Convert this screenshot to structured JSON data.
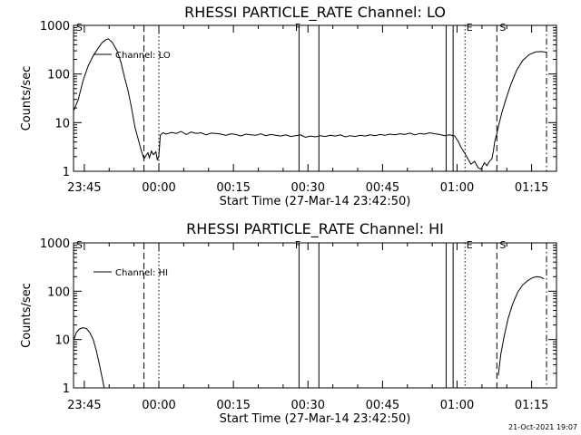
{
  "footer": {
    "timestamp": "21-Oct-2021 19:07"
  },
  "chart_data": [
    {
      "type": "line",
      "title": "RHESSI PARTICLE_RATE Channel: LO",
      "xlabel": "Start Time (27-Mar-14 23:42:50)",
      "ylabel": "Counts/sec",
      "y_scale": "log",
      "ylim": [
        1,
        1000
      ],
      "xlim_minutes": [
        -17.17,
        80.0
      ],
      "x_ticks": [
        {
          "t": -15,
          "label": "23:45"
        },
        {
          "t": 0,
          "label": "00:00"
        },
        {
          "t": 15,
          "label": "00:15"
        },
        {
          "t": 30,
          "label": "00:30"
        },
        {
          "t": 45,
          "label": "00:45"
        },
        {
          "t": 60,
          "label": "01:00"
        },
        {
          "t": 75,
          "label": "01:15"
        }
      ],
      "y_ticks": [
        {
          "v": 1,
          "label": "1"
        },
        {
          "v": 10,
          "label": "10"
        },
        {
          "v": 100,
          "label": "100"
        },
        {
          "v": 1000,
          "label": "1000"
        }
      ],
      "legend": {
        "label": "Channel: LO",
        "placement": "top-left"
      },
      "markers": [
        {
          "t": -17.0,
          "label": "S",
          "style": "dashed"
        },
        {
          "t": 27.0,
          "label": "F",
          "style": "solid"
        },
        {
          "t": 61.5,
          "label": "E",
          "style": "dotted"
        },
        {
          "t": 68.2,
          "label": "S",
          "style": "dashed"
        }
      ],
      "vlines": [
        {
          "t": -3.0,
          "style": "dashed"
        },
        {
          "t": 0.0,
          "style": "dotted"
        },
        {
          "t": 28.2,
          "style": "solid"
        },
        {
          "t": 32.2,
          "style": "solid"
        },
        {
          "t": 57.8,
          "style": "solid"
        },
        {
          "t": 59.2,
          "style": "solid"
        },
        {
          "t": 61.6,
          "style": "dotted"
        },
        {
          "t": 68.0,
          "style": "dashed"
        },
        {
          "t": 78.0,
          "style": "dashdot"
        }
      ],
      "series": [
        {
          "x": [
            -17.1,
            -16.2,
            -15.3,
            -14.3,
            -13.3,
            -12.3,
            -11.5,
            -10.8,
            -10.2,
            -9.4,
            -8.4,
            -7.6,
            -6.9,
            -6.2,
            -5.5,
            -4.8,
            -4.0,
            -3.5,
            -3.0,
            -2.6,
            -2.2,
            -1.9,
            -1.5,
            -1.1,
            -0.6,
            -0.3,
            0.0,
            0.3,
            0.8,
            1.5,
            2.5,
            3.5,
            4.5,
            5.5,
            6.5,
            7.5,
            8.5,
            9.5,
            10.5,
            11.5,
            12.5,
            13.5,
            14.5,
            15.5,
            16.5,
            17.5,
            18.5,
            19.5,
            20.5,
            21.5,
            22.5,
            23.5,
            24.5,
            25.5,
            26.5,
            27.5,
            28.5,
            29.5,
            30.5,
            31.5,
            32.5,
            33.5,
            34.5,
            35.5,
            36.5,
            37.5,
            38.5,
            39.5,
            40.5,
            41.5,
            42.5,
            43.5,
            44.5,
            45.5,
            46.5,
            47.5,
            48.5,
            49.5,
            50.5,
            51.5,
            52.5,
            53.5,
            54.5,
            55.5,
            56.5,
            57.5,
            58.5,
            59.5,
            60.2,
            60.8,
            61.5,
            62.2,
            62.8,
            63.5,
            64.2,
            64.8,
            65.5,
            66.0,
            66.5,
            67.0,
            67.3,
            67.6,
            68.0,
            68.4,
            69.0,
            69.8,
            70.8,
            72.0,
            73.2,
            74.5,
            75.8,
            77.0,
            78.0
          ],
          "y": [
            18,
            30,
            70,
            140,
            230,
            330,
            430,
            500,
            530,
            450,
            300,
            170,
            85,
            45,
            20,
            8,
            4,
            2.6,
            1.8,
            2.1,
            2.4,
            1.9,
            2.6,
            2.2,
            2.5,
            1.7,
            2.1,
            5.5,
            6.2,
            5.8,
            6.3,
            6.0,
            6.6,
            5.7,
            6.4,
            6.0,
            6.2,
            5.6,
            6.1,
            6.0,
            5.8,
            5.5,
            5.9,
            5.7,
            5.3,
            5.8,
            5.6,
            5.5,
            5.9,
            5.4,
            5.7,
            5.5,
            5.3,
            5.6,
            5.2,
            5.4,
            5.6,
            5.0,
            5.3,
            5.1,
            5.4,
            5.2,
            5.5,
            5.3,
            5.6,
            5.1,
            5.4,
            5.2,
            5.5,
            5.3,
            5.6,
            5.4,
            5.7,
            5.5,
            5.8,
            5.6,
            5.9,
            5.7,
            6.1,
            5.6,
            6.0,
            5.8,
            6.2,
            5.9,
            5.7,
            5.4,
            5.6,
            5.3,
            4.2,
            3.1,
            2.4,
            1.8,
            1.4,
            1.6,
            1.2,
            1.1,
            1.5,
            1.3,
            1.6,
            1.8,
            2.6,
            4.2,
            6.0,
            9.0,
            16,
            30,
            60,
            120,
            190,
            250,
            285,
            290,
            280
          ]
        }
      ]
    },
    {
      "type": "line",
      "title": "RHESSI PARTICLE_RATE Channel: HI",
      "xlabel": "Start Time (27-Mar-14 23:42:50)",
      "ylabel": "Counts/sec",
      "y_scale": "log",
      "ylim": [
        1,
        1000
      ],
      "xlim_minutes": [
        -17.17,
        80.0
      ],
      "x_ticks": [
        {
          "t": -15,
          "label": "23:45"
        },
        {
          "t": 0,
          "label": "00:00"
        },
        {
          "t": 15,
          "label": "00:15"
        },
        {
          "t": 30,
          "label": "00:30"
        },
        {
          "t": 45,
          "label": "00:45"
        },
        {
          "t": 60,
          "label": "01:00"
        },
        {
          "t": 75,
          "label": "01:15"
        }
      ],
      "y_ticks": [
        {
          "v": 1,
          "label": "1"
        },
        {
          "v": 10,
          "label": "10"
        },
        {
          "v": 100,
          "label": "100"
        },
        {
          "v": 1000,
          "label": "1000"
        }
      ],
      "legend": {
        "label": "Channel: HI",
        "placement": "top-left"
      },
      "markers": [
        {
          "t": -17.0,
          "label": "S",
          "style": "dashed"
        },
        {
          "t": 27.0,
          "label": "F",
          "style": "solid"
        },
        {
          "t": 61.5,
          "label": "E",
          "style": "dotted"
        },
        {
          "t": 68.2,
          "label": "S",
          "style": "dashed"
        }
      ],
      "vlines": [
        {
          "t": -3.0,
          "style": "dashed"
        },
        {
          "t": 0.0,
          "style": "dotted"
        },
        {
          "t": 28.2,
          "style": "solid"
        },
        {
          "t": 32.2,
          "style": "solid"
        },
        {
          "t": 57.8,
          "style": "solid"
        },
        {
          "t": 59.2,
          "style": "solid"
        },
        {
          "t": 61.6,
          "style": "dotted"
        },
        {
          "t": 68.0,
          "style": "dashed"
        },
        {
          "t": 78.0,
          "style": "dashdot"
        }
      ],
      "series": [
        {
          "x": [
            -17.1,
            -16.6,
            -16.0,
            -15.3,
            -14.6,
            -13.9,
            -13.2,
            -12.6,
            -12.0,
            -11.5,
            -11.0
          ],
          "y": [
            10,
            14,
            16.5,
            17.5,
            17,
            14,
            10,
            6,
            3.2,
            1.8,
            1.0
          ]
        },
        {
          "x": [
            68.3,
            68.8,
            69.5,
            70.3,
            71.2,
            72.2,
            73.2,
            74.2,
            75.2,
            76.0,
            76.8,
            77.5
          ],
          "y": [
            1.8,
            5,
            12,
            28,
            55,
            95,
            135,
            165,
            190,
            200,
            195,
            180
          ]
        }
      ]
    }
  ]
}
